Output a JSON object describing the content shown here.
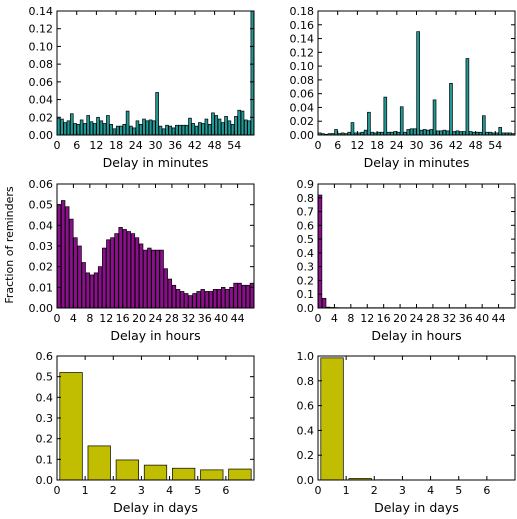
{
  "shared_ylabel": "Fraction of reminders",
  "chart_data": [
    {
      "id": "minutes-a",
      "type": "bar",
      "xlabel": "Delay in minutes",
      "color": "#1f9a96",
      "xlim": [
        0,
        60
      ],
      "ylim": [
        0,
        0.14
      ],
      "xticks": [
        0,
        6,
        12,
        18,
        24,
        30,
        36,
        42,
        48,
        54
      ],
      "yticks": [
        0.0,
        0.02,
        0.04,
        0.06,
        0.08,
        0.1,
        0.12,
        0.14
      ],
      "ytick_labels": [
        "0.00",
        "0.02",
        "0.04",
        "0.06",
        "0.08",
        "0.10",
        "0.12",
        "0.14"
      ],
      "x": [
        0,
        1,
        2,
        3,
        4,
        5,
        6,
        7,
        8,
        9,
        10,
        11,
        12,
        13,
        14,
        15,
        16,
        17,
        18,
        19,
        20,
        21,
        22,
        23,
        24,
        25,
        26,
        27,
        28,
        29,
        30,
        31,
        32,
        33,
        34,
        35,
        36,
        37,
        38,
        39,
        40,
        41,
        42,
        43,
        44,
        45,
        46,
        47,
        48,
        49,
        50,
        51,
        52,
        53,
        54,
        55,
        56,
        57,
        58,
        59
      ],
      "values": [
        0.019,
        0.018,
        0.014,
        0.016,
        0.024,
        0.013,
        0.012,
        0.017,
        0.013,
        0.022,
        0.015,
        0.013,
        0.02,
        0.016,
        0.013,
        0.022,
        0.012,
        0.007,
        0.01,
        0.01,
        0.012,
        0.027,
        0.01,
        0.008,
        0.016,
        0.012,
        0.018,
        0.016,
        0.017,
        0.016,
        0.048,
        0.01,
        0.007,
        0.011,
        0.01,
        0.008,
        0.011,
        0.011,
        0.011,
        0.011,
        0.019,
        0.013,
        0.01,
        0.014,
        0.013,
        0.018,
        0.012,
        0.025,
        0.022,
        0.018,
        0.014,
        0.021,
        0.016,
        0.012,
        0.021,
        0.028,
        0.027,
        0.017,
        0.016,
        0.14
      ]
    },
    {
      "id": "minutes-b",
      "type": "bar",
      "xlabel": "Delay in minutes",
      "color": "#1f9a96",
      "xlim": [
        0,
        60
      ],
      "ylim": [
        0,
        0.18
      ],
      "xticks": [
        0,
        6,
        12,
        18,
        24,
        30,
        36,
        42,
        48,
        54
      ],
      "yticks": [
        0.0,
        0.02,
        0.04,
        0.06,
        0.08,
        0.1,
        0.12,
        0.14,
        0.16,
        0.18
      ],
      "ytick_labels": [
        "0.00",
        "0.02",
        "0.04",
        "0.06",
        "0.08",
        "0.10",
        "0.12",
        "0.14",
        "0.16",
        "0.18"
      ],
      "x": [
        0,
        1,
        2,
        3,
        4,
        5,
        6,
        7,
        8,
        9,
        10,
        11,
        12,
        13,
        14,
        15,
        16,
        17,
        18,
        19,
        20,
        21,
        22,
        23,
        24,
        25,
        26,
        27,
        28,
        29,
        30,
        31,
        32,
        33,
        34,
        35,
        36,
        37,
        38,
        39,
        40,
        41,
        42,
        43,
        44,
        45,
        46,
        47,
        48,
        49,
        50,
        51,
        52,
        53,
        54,
        55,
        56,
        57,
        58,
        59
      ],
      "values": [
        0.003,
        0.002,
        0.001,
        0.002,
        0.002,
        0.008,
        0.002,
        0.003,
        0.002,
        0.004,
        0.018,
        0.003,
        0.003,
        0.004,
        0.007,
        0.033,
        0.004,
        0.003,
        0.004,
        0.004,
        0.055,
        0.004,
        0.004,
        0.005,
        0.004,
        0.041,
        0.004,
        0.008,
        0.009,
        0.009,
        0.15,
        0.007,
        0.008,
        0.007,
        0.008,
        0.051,
        0.006,
        0.006,
        0.007,
        0.006,
        0.075,
        0.005,
        0.006,
        0.005,
        0.005,
        0.111,
        0.005,
        0.004,
        0.004,
        0.004,
        0.028,
        0.004,
        0.004,
        0.003,
        0.003,
        0.011,
        0.003,
        0.003,
        0.003,
        0.002
      ]
    },
    {
      "id": "hours-a",
      "type": "bar",
      "xlabel": "Delay in hours",
      "color": "#8b0f8b",
      "xlim": [
        0,
        48
      ],
      "ylim": [
        0,
        0.06
      ],
      "xticks": [
        0,
        4,
        8,
        12,
        16,
        20,
        24,
        28,
        32,
        36,
        40,
        44
      ],
      "yticks": [
        0.0,
        0.01,
        0.02,
        0.03,
        0.04,
        0.05,
        0.06
      ],
      "ytick_labels": [
        "0.00",
        "0.01",
        "0.02",
        "0.03",
        "0.04",
        "0.05",
        "0.06"
      ],
      "x": [
        0,
        1,
        2,
        3,
        4,
        5,
        6,
        7,
        8,
        9,
        10,
        11,
        12,
        13,
        14,
        15,
        16,
        17,
        18,
        19,
        20,
        21,
        22,
        23,
        24,
        25,
        26,
        27,
        28,
        29,
        30,
        31,
        32,
        33,
        34,
        35,
        36,
        37,
        38,
        39,
        40,
        41,
        42,
        43,
        44,
        45,
        46,
        47
      ],
      "values": [
        0.05,
        0.052,
        0.049,
        0.043,
        0.034,
        0.03,
        0.022,
        0.017,
        0.016,
        0.017,
        0.02,
        0.029,
        0.033,
        0.034,
        0.036,
        0.039,
        0.038,
        0.037,
        0.036,
        0.034,
        0.031,
        0.028,
        0.029,
        0.028,
        0.028,
        0.028,
        0.019,
        0.014,
        0.011,
        0.009,
        0.008,
        0.007,
        0.006,
        0.007,
        0.008,
        0.009,
        0.008,
        0.008,
        0.009,
        0.009,
        0.01,
        0.009,
        0.01,
        0.012,
        0.012,
        0.011,
        0.011,
        0.012
      ]
    },
    {
      "id": "hours-b",
      "type": "bar",
      "xlabel": "Delay in hours",
      "color": "#8b0f8b",
      "xlim": [
        0,
        48
      ],
      "ylim": [
        0,
        0.9
      ],
      "xticks": [
        0,
        4,
        8,
        12,
        16,
        20,
        24,
        28,
        32,
        36,
        40,
        44
      ],
      "yticks": [
        0.0,
        0.1,
        0.2,
        0.3,
        0.4,
        0.5,
        0.6,
        0.7,
        0.8,
        0.9
      ],
      "ytick_labels": [
        "0.0",
        "0.1",
        "0.2",
        "0.3",
        "0.4",
        "0.5",
        "0.6",
        "0.7",
        "0.8",
        "0.9"
      ],
      "x": [
        0,
        1,
        2,
        3,
        4,
        5,
        6,
        7,
        8,
        9,
        10,
        11,
        12,
        13,
        14,
        15,
        16,
        17,
        18,
        19,
        20,
        21,
        22,
        23,
        24,
        25,
        26,
        27,
        28,
        29,
        30,
        31,
        32,
        33,
        34,
        35,
        36,
        37,
        38,
        39,
        40,
        41,
        42,
        43,
        44,
        45,
        46,
        47
      ],
      "values": [
        0.82,
        0.07,
        0.006,
        0.004,
        0.003,
        0.002,
        0.002,
        0.002,
        0.002,
        0.002,
        0.002,
        0.002,
        0.002,
        0.002,
        0.002,
        0.002,
        0.002,
        0.002,
        0.002,
        0.002,
        0.002,
        0.002,
        0.002,
        0.002,
        0.002,
        0.002,
        0.002,
        0.002,
        0.002,
        0.002,
        0.002,
        0.002,
        0.002,
        0.002,
        0.002,
        0.002,
        0.002,
        0.002,
        0.002,
        0.002,
        0.002,
        0.002,
        0.002,
        0.002,
        0.002,
        0.002,
        0.002,
        0.002
      ]
    },
    {
      "id": "days-a",
      "type": "bar",
      "xlabel": "Delay in days",
      "color": "#c1bd00",
      "xlim": [
        0,
        7
      ],
      "ylim": [
        0,
        0.6
      ],
      "xticks": [
        0,
        1,
        2,
        3,
        4,
        5,
        6
      ],
      "yticks": [
        0.0,
        0.1,
        0.2,
        0.3,
        0.4,
        0.5,
        0.6
      ],
      "ytick_labels": [
        "0.0",
        "0.1",
        "0.2",
        "0.3",
        "0.4",
        "0.5",
        "0.6"
      ],
      "x": [
        0,
        1,
        2,
        3,
        4,
        5,
        6
      ],
      "values": [
        0.52,
        0.165,
        0.097,
        0.072,
        0.057,
        0.049,
        0.053
      ]
    },
    {
      "id": "days-b",
      "type": "bar",
      "xlabel": "Delay in days",
      "color": "#c1bd00",
      "xlim": [
        0,
        7
      ],
      "ylim": [
        0,
        1.0
      ],
      "xticks": [
        0,
        1,
        2,
        3,
        4,
        5,
        6
      ],
      "yticks": [
        0.0,
        0.2,
        0.4,
        0.6,
        0.8,
        1.0
      ],
      "ytick_labels": [
        "0.0",
        "0.2",
        "0.4",
        "0.6",
        "0.8",
        "1.0"
      ],
      "x": [
        0,
        1,
        2,
        3,
        4,
        5,
        6
      ],
      "values": [
        0.985,
        0.012,
        0.002,
        0.001,
        0.001,
        0.001,
        0.001
      ]
    }
  ]
}
